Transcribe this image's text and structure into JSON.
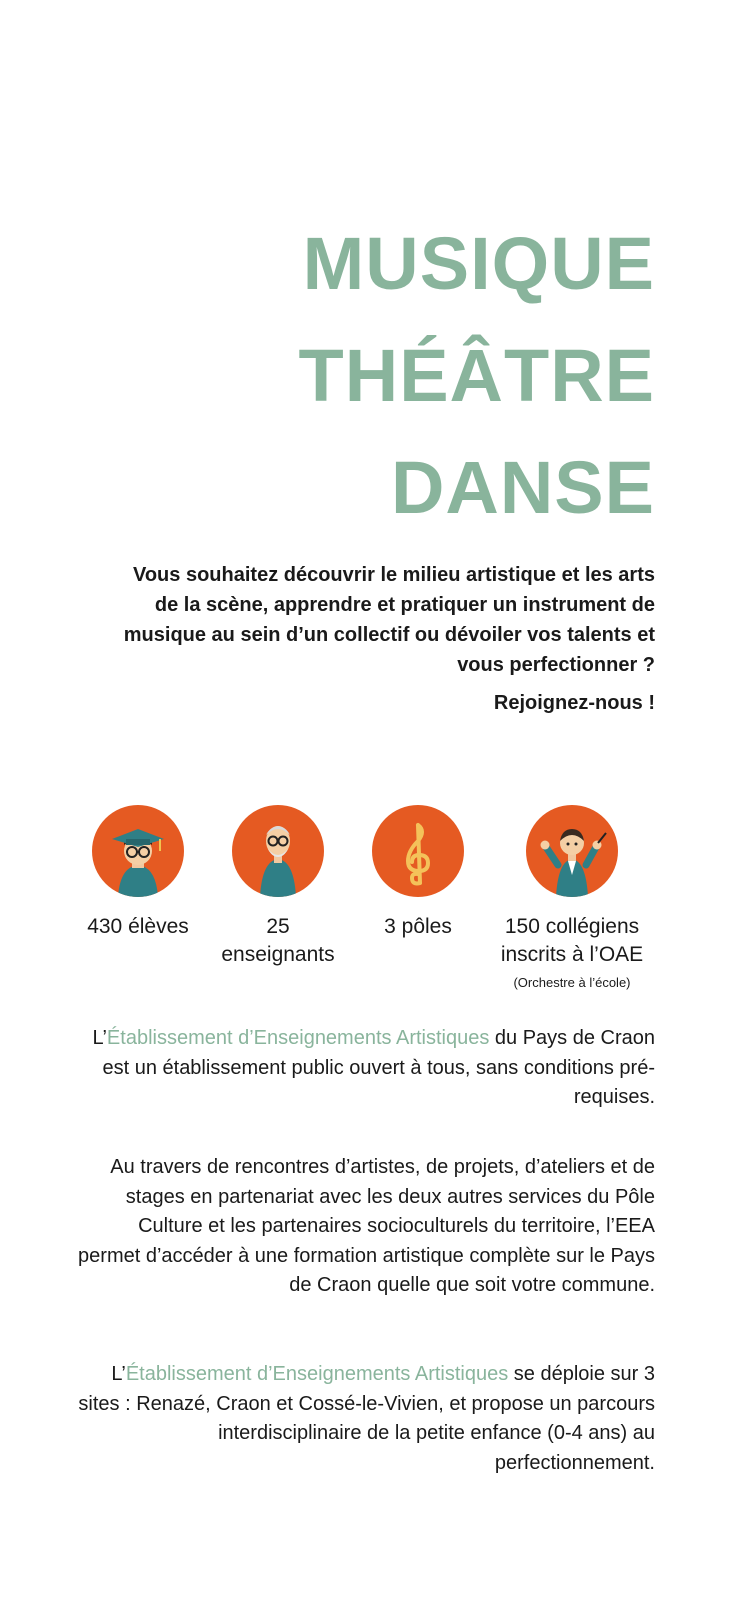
{
  "title": {
    "line1": "MUSIQUE",
    "line2": "THÉÂTRE",
    "line3": "DANSE"
  },
  "intro": {
    "question": "Vous souhaitez découvrir le milieu artistique et les arts de la scène, apprendre et pratiquer un instrument de musique au sein d’un collectif ou dévoiler vos talents et vous perfectionner ?",
    "cta": "Rejoignez-nous !"
  },
  "stats": [
    {
      "icon": "graduate-student-icon",
      "line1": "430 élèves",
      "line2": "",
      "note": ""
    },
    {
      "icon": "teacher-icon",
      "line1": "25",
      "line2": "enseignants",
      "note": ""
    },
    {
      "icon": "treble-clef-icon",
      "line1": "3 pôles",
      "line2": "",
      "note": ""
    },
    {
      "icon": "conductor-icon",
      "line1": "150 collégiens",
      "line2": "inscrits à l’OAE",
      "note": "(Orchestre à l’école)"
    }
  ],
  "paragraphs": {
    "p1": {
      "prefix": "L’",
      "highlight": "Établissement d’Enseignements Artistiques",
      "rest": " du Pays de Craon est un établissement public ouvert à tous, sans conditions pré-requises."
    },
    "p2": {
      "text": "Au travers de rencontres d’artistes, de projets, d’ateliers et de stages en partenariat avec les deux autres services du Pôle Culture et les partenaires socioculturels du territoire, l’EEA permet d’accéder à une formation artistique complète sur le Pays de Craon quelle que soit votre  commune."
    },
    "p3": {
      "prefix": "L’",
      "highlight": "Établissement d’Enseignements Artistiques",
      "rest": " se déploie sur 3 sites : Renazé, Craon et Cossé-le-Vivien, et propose un parcours interdisciplinaire de la petite enfance (0-4 ans) au perfectionnement."
    }
  },
  "colors": {
    "accent": "#89b49c",
    "icon_bg": "#e55a22",
    "text": "#1a1a1a"
  }
}
